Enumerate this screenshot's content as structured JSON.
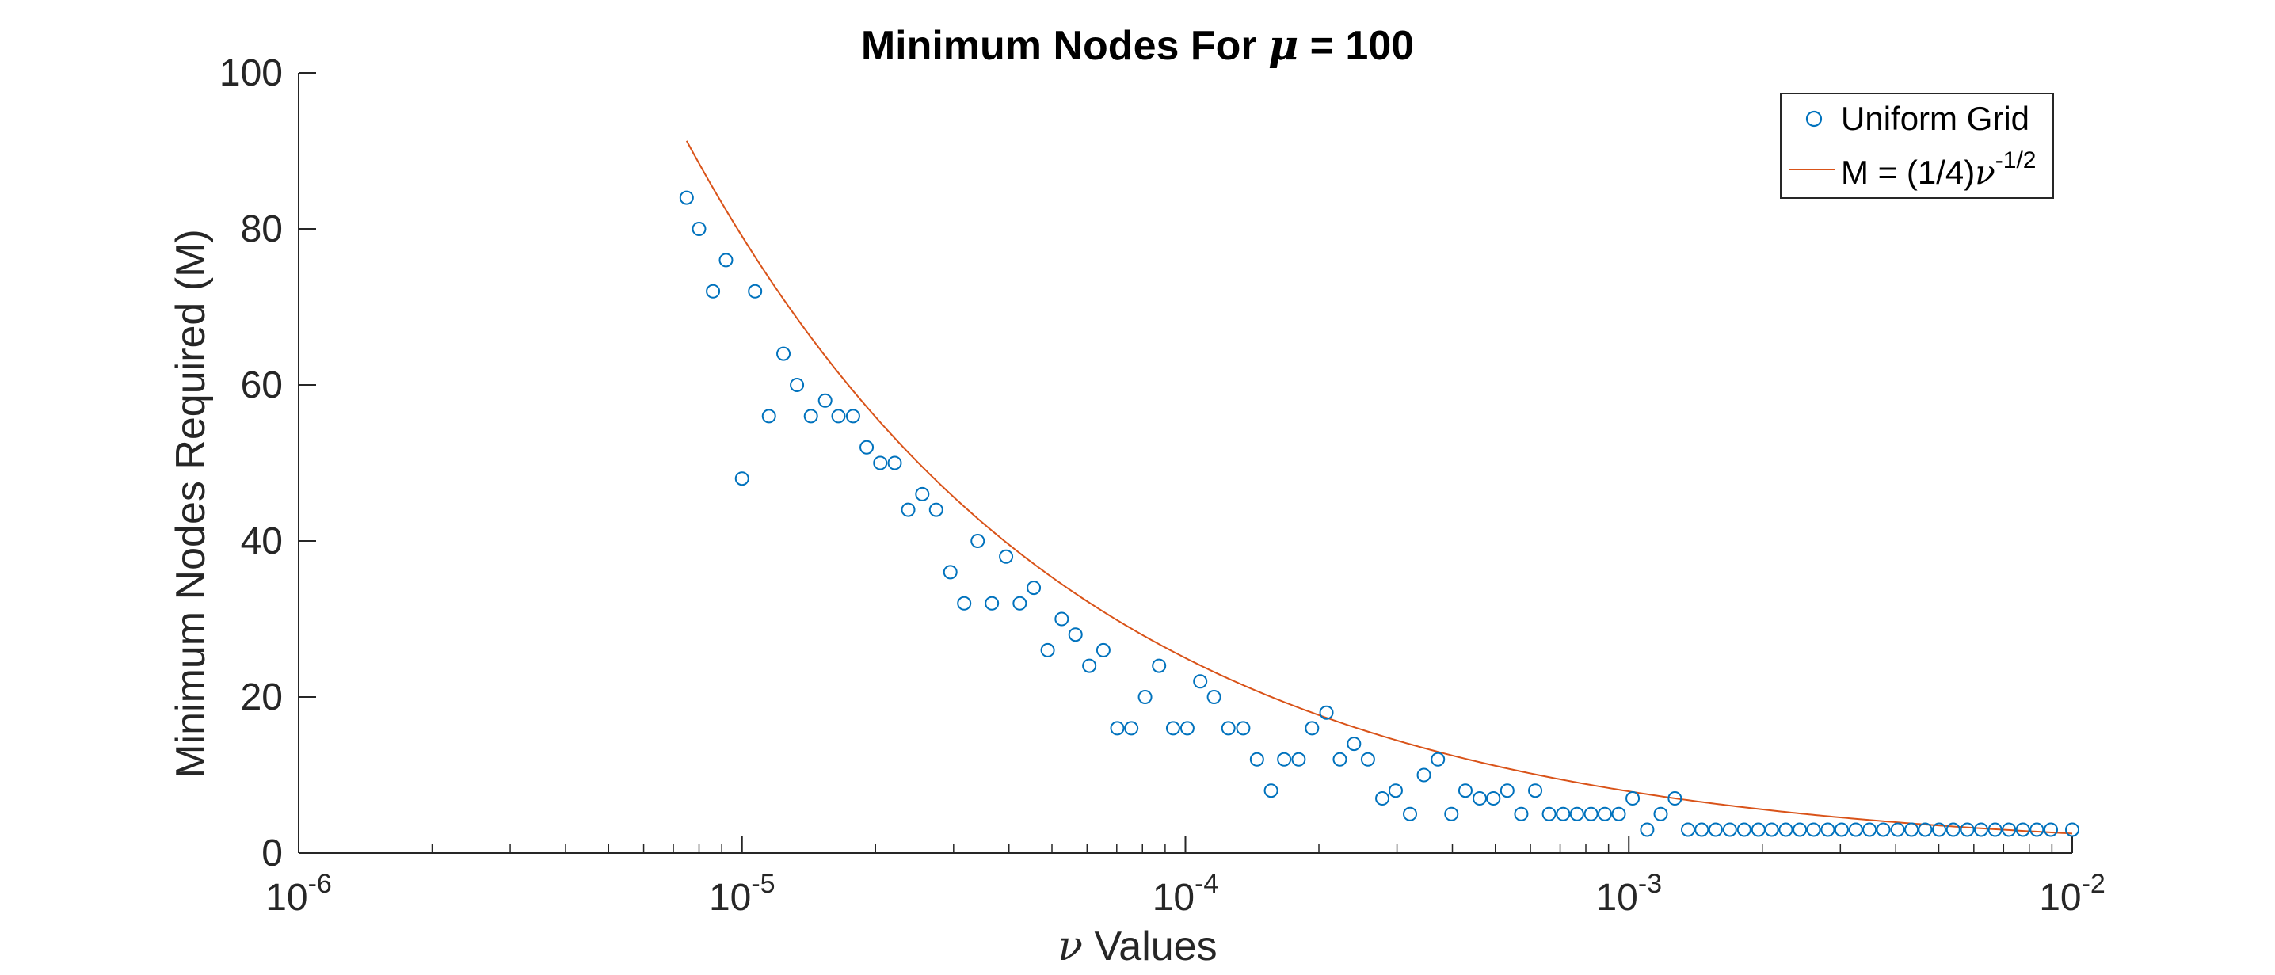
{
  "chart_data": {
    "type": "scatter",
    "title": {
      "prefix": "Minimum Nodes For ",
      "symbol": "μ",
      "suffix": " = 100"
    },
    "xlabel": {
      "symbol": "ν",
      "text": " Values"
    },
    "ylabel": "Minimum Nodes Required (M)",
    "x_scale": "log",
    "xlim": [
      1e-06,
      0.01
    ],
    "ylim": [
      0,
      100
    ],
    "grid": false,
    "legend_position": "top-right",
    "x_tick_labels": [
      {
        "base": "10",
        "exp": "-6"
      },
      {
        "base": "10",
        "exp": "-5"
      },
      {
        "base": "10",
        "exp": "-4"
      },
      {
        "base": "10",
        "exp": "-3"
      },
      {
        "base": "10",
        "exp": "-2"
      }
    ],
    "y_tick_labels": [
      "0",
      "20",
      "40",
      "60",
      "80",
      "100"
    ],
    "y_ticks": [
      0,
      20,
      40,
      60,
      80,
      100
    ],
    "series": [
      {
        "name": "Uniform Grid",
        "kind": "markers",
        "marker": "circle",
        "color": "#0072BD",
        "x": [
          7.5e-06,
          8e-06,
          8.6e-06,
          9.2e-06,
          1e-05,
          1.07e-05,
          1.15e-05,
          1.24e-05,
          1.33e-05,
          1.43e-05,
          1.54e-05,
          1.65e-05,
          1.78e-05,
          1.91e-05,
          2.05e-05,
          2.21e-05,
          2.37e-05,
          2.55e-05,
          2.74e-05,
          2.95e-05,
          3.17e-05,
          3.4e-05,
          3.66e-05,
          3.94e-05,
          4.23e-05,
          4.55e-05,
          4.89e-05,
          5.26e-05,
          5.65e-05,
          6.07e-05,
          6.53e-05,
          7.02e-05,
          7.55e-05,
          8.11e-05,
          8.72e-05,
          9.38e-05,
          0.000101,
          0.000108,
          0.000116,
          0.000125,
          0.000135,
          0.000145,
          0.000156,
          0.000167,
          0.00018,
          0.000193,
          0.000208,
          0.000223,
          0.00024,
          0.000258,
          0.000278,
          0.000298,
          0.000321,
          0.000345,
          0.000371,
          0.000398,
          0.000428,
          0.000461,
          0.000495,
          0.000532,
          0.000572,
          0.000615,
          0.000661,
          0.000711,
          0.000764,
          0.000822,
          0.000883,
          0.000949,
          0.00102,
          0.0011,
          0.00118,
          0.00127,
          0.00136,
          0.00146,
          0.00157,
          0.00169,
          0.00182,
          0.00196,
          0.0021,
          0.00226,
          0.00243,
          0.00261,
          0.00281,
          0.00302,
          0.00325,
          0.00349,
          0.00375,
          0.00404,
          0.00434,
          0.00466,
          0.00501,
          0.00539,
          0.0058,
          0.00623,
          0.0067,
          0.0072,
          0.00774,
          0.00832,
          0.00895,
          0.01
        ],
        "y": [
          84,
          80,
          72,
          76,
          48,
          72,
          56,
          64,
          60,
          56,
          58,
          56,
          56,
          52,
          50,
          50,
          44,
          46,
          44,
          36,
          32,
          40,
          32,
          38,
          32,
          34,
          26,
          30,
          28,
          24,
          26,
          16,
          16,
          20,
          24,
          16,
          16,
          22,
          20,
          16,
          16,
          12,
          8,
          12,
          12,
          16,
          18,
          12,
          14,
          12,
          7,
          8,
          5,
          10,
          12,
          5,
          8,
          7,
          7,
          8,
          5,
          8,
          5,
          5,
          5,
          5,
          5,
          5,
          7,
          3,
          5,
          7,
          3,
          3,
          3,
          3,
          3,
          3,
          3,
          3,
          3,
          3,
          3,
          3,
          3,
          3,
          3,
          3,
          3,
          3,
          3,
          3,
          3,
          3,
          3,
          3,
          3,
          3,
          3,
          3
        ]
      },
      {
        "name": {
          "prefix": "M = (1/4)",
          "symbol": "ν",
          "exp": "-1/2"
        },
        "kind": "line",
        "color": "#D95319",
        "formula": "M = (1/4) * x^(-1/2)",
        "x": [
          7.5e-06,
          8e-06,
          9e-06,
          1e-05,
          1.2e-05,
          1.5e-05,
          2e-05,
          2.5e-05,
          3e-05,
          4e-05,
          5e-05,
          6e-05,
          8e-05,
          0.0001,
          0.00015,
          0.0002,
          0.0003,
          0.0005,
          0.0007,
          0.001,
          0.0015,
          0.002,
          0.003,
          0.005,
          0.007,
          0.01
        ],
        "y": [
          91.29,
          88.39,
          83.33,
          79.06,
          72.17,
          64.55,
          55.9,
          50.0,
          45.64,
          39.53,
          35.36,
          32.27,
          27.95,
          25.0,
          20.41,
          17.68,
          14.43,
          11.18,
          9.45,
          7.91,
          6.45,
          5.59,
          4.56,
          3.54,
          2.99,
          2.5
        ]
      }
    ]
  }
}
